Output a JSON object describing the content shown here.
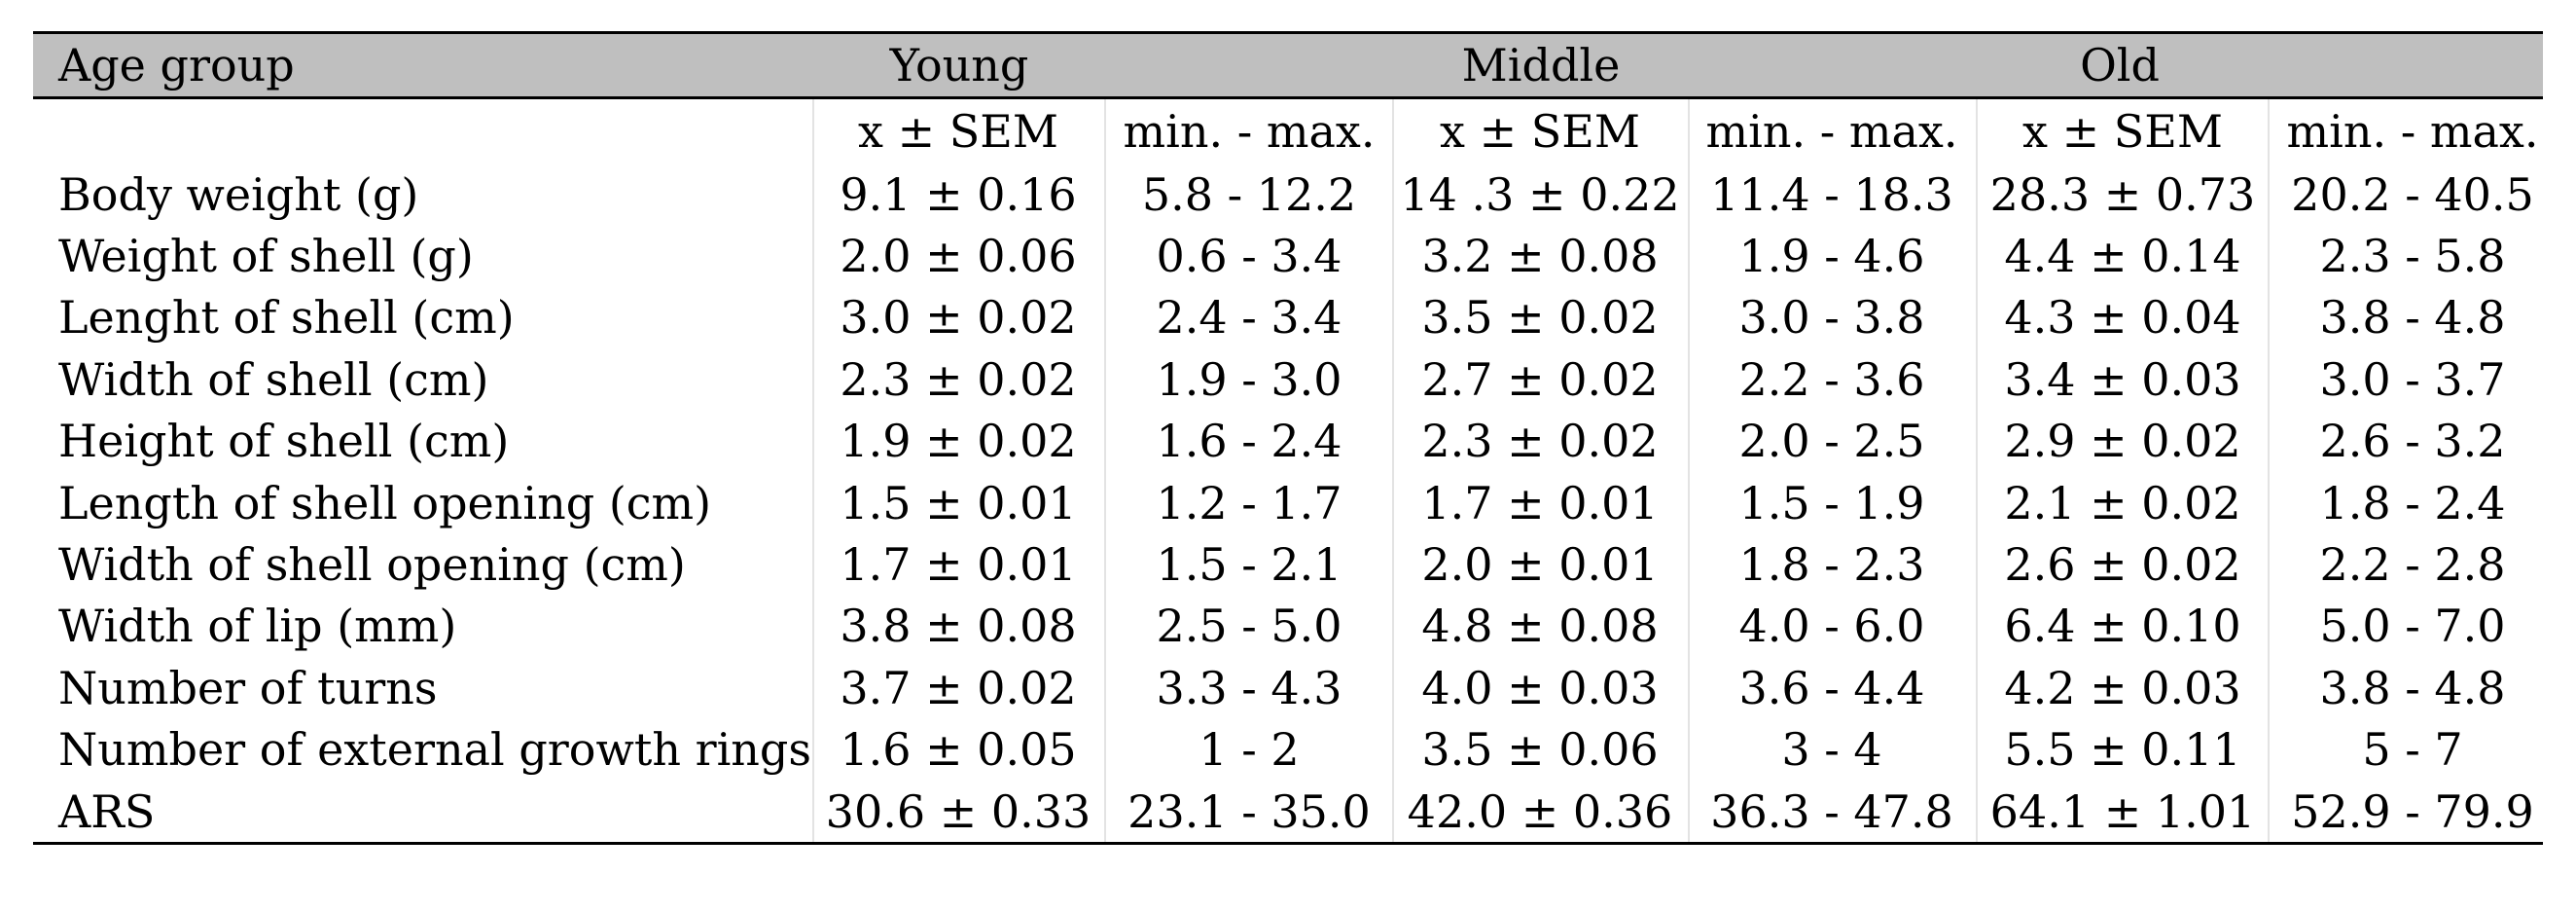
{
  "table": {
    "header": {
      "col0": "Age group",
      "groups": [
        "Young",
        "Middle",
        "Old"
      ]
    },
    "subheader": [
      "x ± SEM",
      "min. - max.",
      "x ± SEM",
      "min. - max.",
      "x ± SEM",
      "min. - max."
    ],
    "rows": [
      {
        "label": "Body weight (g)",
        "cells": [
          "9.1 ± 0.16",
          "5.8 - 12.2",
          "14 .3 ± 0.22",
          "11.4 - 18.3",
          "28.3 ± 0.73",
          "20.2 - 40.5"
        ]
      },
      {
        "label": "Weight of shell (g)",
        "cells": [
          "2.0 ± 0.06",
          "0.6 - 3.4",
          "3.2 ± 0.08",
          "1.9 - 4.6",
          "4.4 ± 0.14",
          "2.3 - 5.8"
        ]
      },
      {
        "label": "Lenght of shell (cm)",
        "cells": [
          "3.0 ± 0.02",
          "2.4 - 3.4",
          "3.5 ± 0.02",
          "3.0 - 3.8",
          "4.3 ± 0.04",
          "3.8 - 4.8"
        ]
      },
      {
        "label": "Width of shell (cm)",
        "cells": [
          "2.3 ± 0.02",
          "1.9 - 3.0",
          "2.7 ± 0.02",
          "2.2 - 3.6",
          "3.4 ± 0.03",
          "3.0 - 3.7"
        ]
      },
      {
        "label": "Height of shell (cm)",
        "cells": [
          "1.9 ± 0.02",
          "1.6 - 2.4",
          "2.3 ± 0.02",
          "2.0 - 2.5",
          "2.9 ± 0.02",
          "2.6 - 3.2"
        ]
      },
      {
        "label": "Length of shell opening (cm)",
        "cells": [
          "1.5 ± 0.01",
          "1.2 - 1.7",
          "1.7 ± 0.01",
          "1.5 - 1.9",
          "2.1 ± 0.02",
          "1.8 - 2.4"
        ]
      },
      {
        "label": "Width of shell opening (cm)",
        "cells": [
          "1.7 ± 0.01",
          "1.5 - 2.1",
          "2.0 ± 0.01",
          "1.8 - 2.3",
          "2.6 ± 0.02",
          "2.2 - 2.8"
        ]
      },
      {
        "label": "Width of lip (mm)",
        "cells": [
          "3.8 ± 0.08",
          "2.5 - 5.0",
          "4.8 ± 0.08",
          "4.0 - 6.0",
          "6.4 ± 0.10",
          "5.0 - 7.0"
        ]
      },
      {
        "label": "Number of turns",
        "cells": [
          "3.7 ± 0.02",
          "3.3 - 4.3",
          "4.0 ± 0.03",
          "3.6 - 4.4",
          "4.2 ± 0.03",
          "3.8 - 4.8"
        ]
      },
      {
        "label": "Number of external growth rings",
        "cells": [
          "1.6 ± 0.05",
          "1 - 2",
          "3.5 ± 0.06",
          "3 - 4",
          "5.5 ± 0.11",
          "5 - 7"
        ]
      },
      {
        "label": "ARS",
        "cells": [
          "30.6 ± 0.33",
          "23.1 - 35.0",
          "42.0 ± 0.36",
          "36.3 - 47.8",
          "64.1 ± 1.01",
          "52.9 - 79.9"
        ]
      }
    ]
  }
}
